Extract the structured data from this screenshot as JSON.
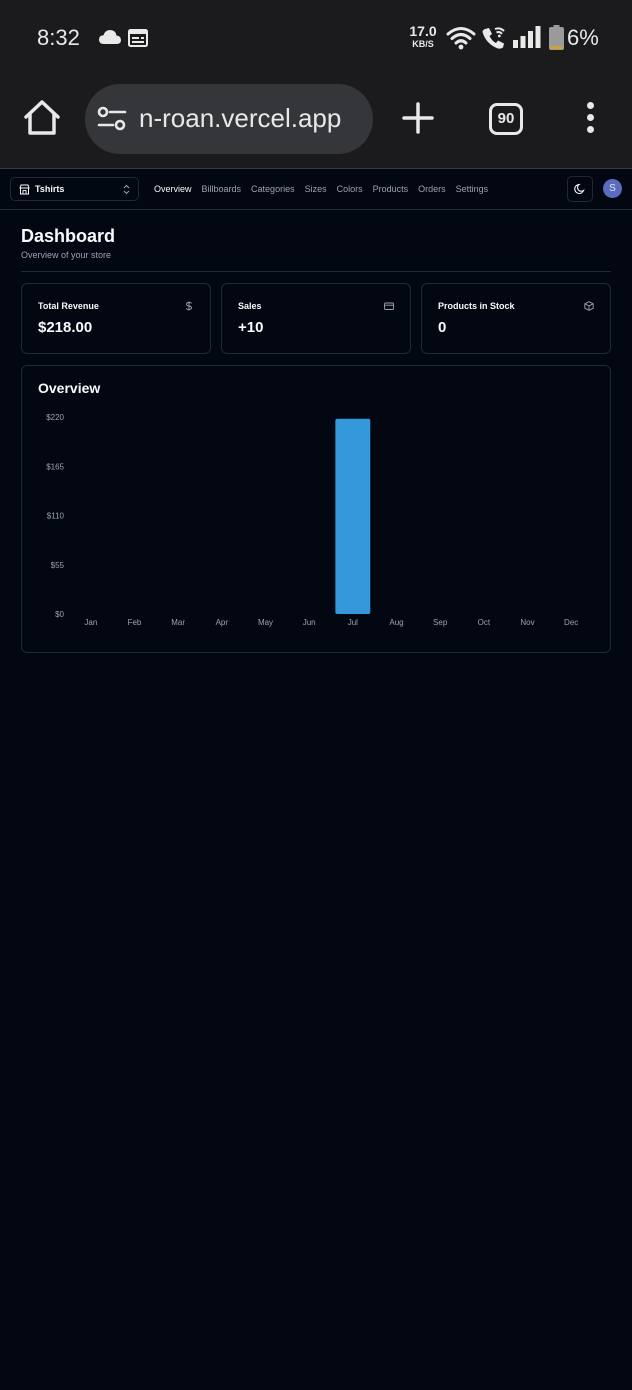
{
  "status_bar": {
    "time": "8:32",
    "net_speed_value": "17.0",
    "net_speed_unit": "KB/S",
    "battery": "6%",
    "icons": [
      "cloud-icon",
      "calendar-icon",
      "wifi-icon",
      "wifi-call-icon",
      "signal-icon",
      "battery-icon"
    ]
  },
  "browser": {
    "url": "n-roan.vercel.app",
    "tab_count": "90",
    "icons": [
      "home-icon",
      "site-settings-icon",
      "plus-icon",
      "menu-icon"
    ]
  },
  "nav": {
    "store": "Tshirts",
    "links": [
      "Overview",
      "Billboards",
      "Categories",
      "Sizes",
      "Colors",
      "Products",
      "Orders",
      "Settings"
    ],
    "active": "Overview",
    "avatar_initial": "S"
  },
  "page": {
    "title": "Dashboard",
    "subtitle": "Overview of your store"
  },
  "cards": [
    {
      "title": "Total Revenue",
      "value": "$218.00",
      "icon": "dollar-icon"
    },
    {
      "title": "Sales",
      "value": "+10",
      "icon": "credit-card-icon"
    },
    {
      "title": "Products in Stock",
      "value": "0",
      "icon": "package-icon"
    }
  ],
  "chart_data": {
    "type": "bar",
    "title": "Overview",
    "categories": [
      "Jan",
      "Feb",
      "Mar",
      "Apr",
      "May",
      "Jun",
      "Jul",
      "Aug",
      "Sep",
      "Oct",
      "Nov",
      "Dec"
    ],
    "values": [
      0,
      0,
      0,
      0,
      0,
      0,
      218,
      0,
      0,
      0,
      0,
      0
    ],
    "y_ticks": [
      "$0",
      "$55",
      "$110",
      "$165",
      "$220"
    ],
    "ylim": [
      0,
      220
    ],
    "grid": false,
    "bar_color": "#3498db"
  },
  "colors": {
    "background": "#030712",
    "border": "#1f2937",
    "muted_text": "#9ca3af",
    "accent": "#3498db"
  }
}
